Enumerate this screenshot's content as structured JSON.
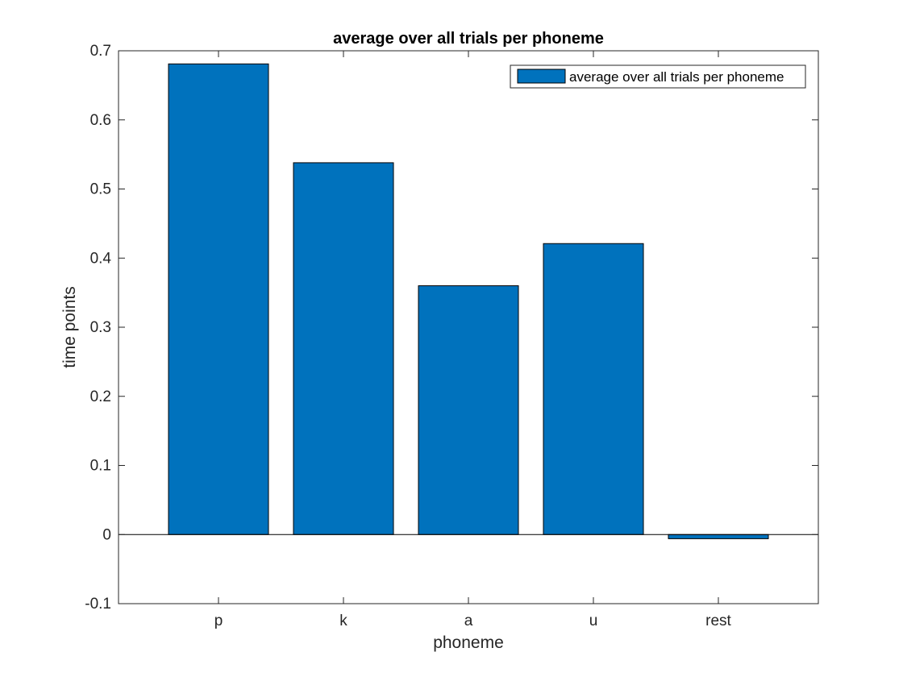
{
  "chart_data": {
    "type": "bar",
    "title": "average over all trials per phoneme",
    "xlabel": "phoneme",
    "ylabel": "time points",
    "categories": [
      "p",
      "k",
      "a",
      "u",
      "rest"
    ],
    "series": [
      {
        "name": "average over all trials per phoneme",
        "values": [
          0.681,
          0.538,
          0.36,
          0.421,
          -0.006
        ],
        "color": "#0072BD"
      }
    ],
    "ylim": [
      -0.1,
      0.7
    ],
    "yticks": [
      -0.1,
      0,
      0.1,
      0.2,
      0.3,
      0.4,
      0.5,
      0.6,
      0.7
    ],
    "ytick_labels": [
      "-0.1",
      "0",
      "0.1",
      "0.2",
      "0.3",
      "0.4",
      "0.5",
      "0.6",
      "0.7"
    ],
    "xlim": [
      0.2,
      5.8
    ],
    "grid": false,
    "baseline": 0,
    "legend_position": "top-right"
  }
}
